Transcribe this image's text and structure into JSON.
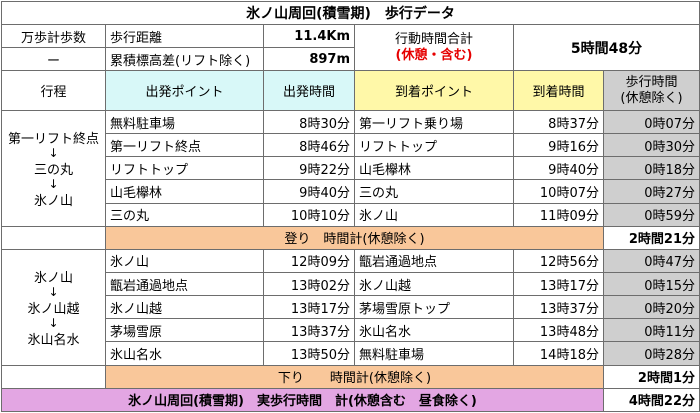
{
  "title": "氷ノ山周回(積雪期)　歩行データ",
  "summary": {
    "pedometer_label": "万歩計歩数",
    "pedometer_value": "ー",
    "distance_label": "歩行距離",
    "distance_value": "11.4Km",
    "elevation_label": "累積標高差(リフト除く)",
    "elevation_value": "897m",
    "action_time_label": "行動時間合計",
    "action_time_note": "(休憩・含む)",
    "action_time_value": "5時間48分"
  },
  "headers": {
    "route": "行程",
    "start_point": "出発ポイント",
    "start_time": "出発時間",
    "arrive_point": "到着ポイント",
    "arrive_time": "到着時間",
    "walk_time_1": "歩行時間",
    "walk_time_2": "(休憩除く)"
  },
  "section1": {
    "route": [
      "第一リフト終点",
      "↓",
      "三の丸",
      "↓",
      "氷ノ山"
    ],
    "rows": [
      {
        "from": "無料駐車場",
        "dep": "8時30分",
        "to": "第一リフト乗り場",
        "arr": "8時37分",
        "walk": "0時07分"
      },
      {
        "from": "第一リフト終点",
        "dep": "8時46分",
        "to": "リフトトップ",
        "arr": "9時16分",
        "walk": "0時30分"
      },
      {
        "from": "リフトトップ",
        "dep": "9時22分",
        "to": "山毛欅林",
        "arr": "9時40分",
        "walk": "0時18分"
      },
      {
        "from": "山毛欅林",
        "dep": "9時40分",
        "to": "三の丸",
        "arr": "10時07分",
        "walk": "0時27分"
      },
      {
        "from": "三の丸",
        "dep": "10時10分",
        "to": "氷ノ山",
        "arr": "11時09分",
        "walk": "0時59分"
      }
    ],
    "subtotal_label": "登り　時間計(休憩除く)",
    "subtotal_value": "2時間21分"
  },
  "section2": {
    "route": [
      "氷ノ山",
      "↓",
      "氷ノ山越",
      "↓",
      "氷山名水"
    ],
    "rows": [
      {
        "from": "氷ノ山",
        "dep": "12時09分",
        "to": "甑岩通過地点",
        "arr": "12時56分",
        "walk": "0時47分"
      },
      {
        "from": "甑岩通過地点",
        "dep": "13時02分",
        "to": "氷ノ山越",
        "arr": "13時17分",
        "walk": "0時15分"
      },
      {
        "from": "氷ノ山越",
        "dep": "13時17分",
        "to": "茅場雪原トップ",
        "arr": "13時37分",
        "walk": "0時20分"
      },
      {
        "from": "茅場雪原",
        "dep": "13時37分",
        "to": "氷山名水",
        "arr": "13時48分",
        "walk": "0時11分"
      },
      {
        "from": "氷山名水",
        "dep": "13時50分",
        "to": "無料駐車場",
        "arr": "14時18分",
        "walk": "0時28分"
      }
    ],
    "subtotal_label": "下り　　時間計(休憩除く)",
    "subtotal_value": "2時間1分"
  },
  "footer": {
    "label": "氷ノ山周回(積雪期)　実歩行時間　計(休憩含む　昼食除く)",
    "value": "4時間22分"
  },
  "colors": {
    "cyan": "#d8f8f8",
    "yellow": "#fff8a8",
    "gray": "#cfcfcf",
    "orange": "#f9c79a",
    "purple": "#e3a6e3",
    "red": "#e60000"
  }
}
